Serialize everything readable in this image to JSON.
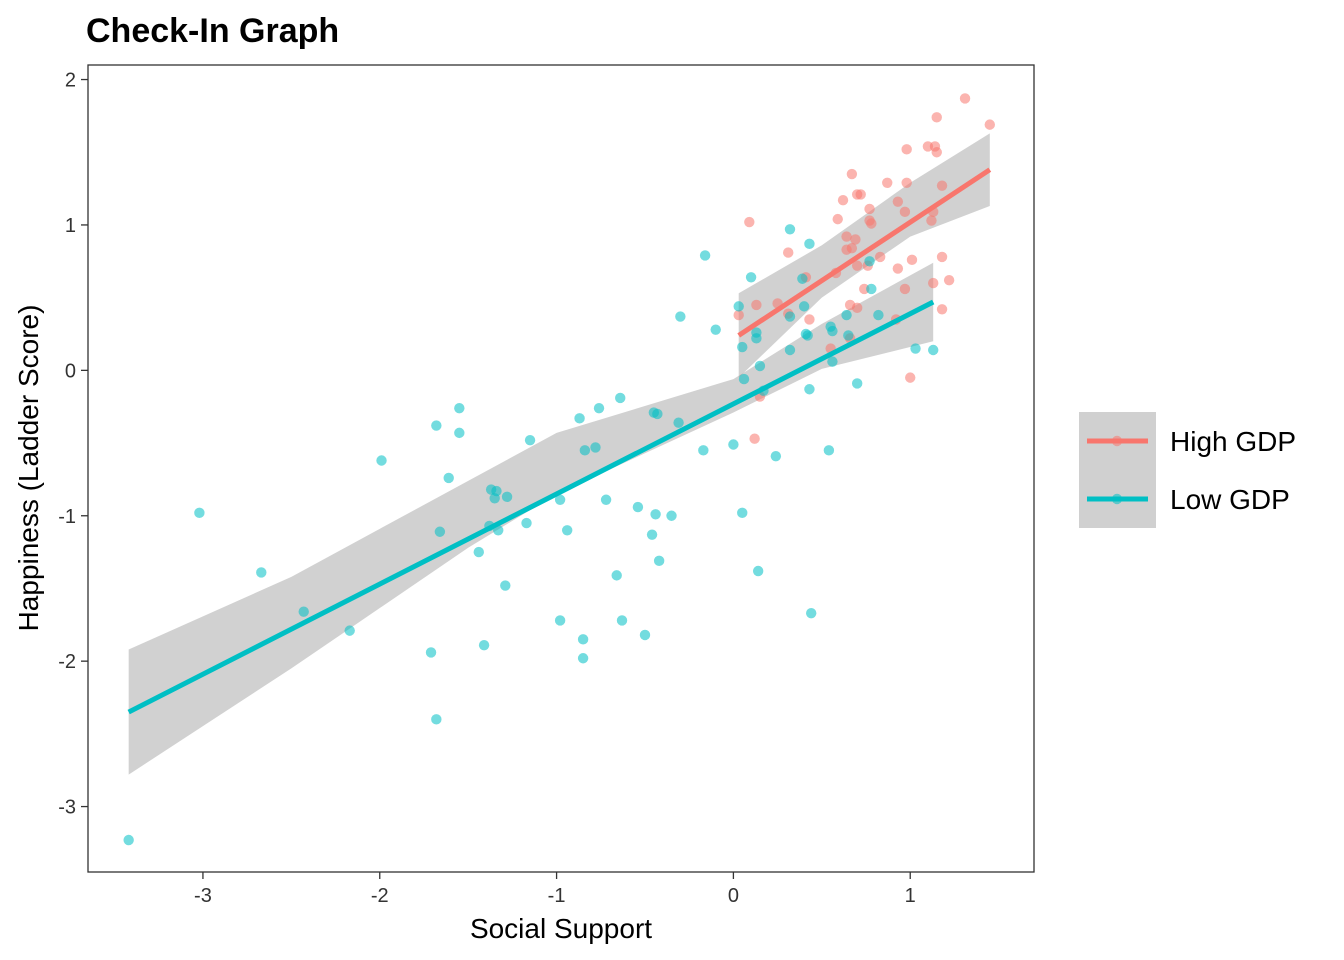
{
  "chart_data": {
    "type": "scatter",
    "title": "Check-In Graph",
    "xlabel": "Social Support",
    "ylabel": "Happiness (Ladder Score)",
    "xlim": [
      -3.65,
      1.7
    ],
    "ylim": [
      -3.45,
      2.1
    ],
    "x_ticks": [
      -3,
      -2,
      -1,
      0,
      1
    ],
    "y_ticks": [
      -3,
      -2,
      -1,
      0,
      1,
      2
    ],
    "x_tick_labels": [
      "-3",
      "-2",
      "-1",
      "0",
      "1"
    ],
    "y_tick_labels": [
      "-3",
      "-2",
      "-1",
      "0",
      "1",
      "2"
    ],
    "grid": false,
    "legend_position": "right",
    "series": [
      {
        "name": "High GDP",
        "color": "#F8766D",
        "points": [
          [
            1.31,
            1.87
          ],
          [
            1.45,
            1.69
          ],
          [
            1.15,
            1.74
          ],
          [
            1.1,
            1.54
          ],
          [
            1.14,
            1.54
          ],
          [
            1.15,
            1.5
          ],
          [
            0.98,
            1.52
          ],
          [
            1.18,
            1.27
          ],
          [
            1.13,
            1.09
          ],
          [
            1.12,
            1.03
          ],
          [
            0.87,
            1.29
          ],
          [
            0.98,
            1.29
          ],
          [
            0.67,
            1.35
          ],
          [
            0.62,
            1.17
          ],
          [
            0.7,
            1.21
          ],
          [
            0.72,
            1.21
          ],
          [
            0.77,
            1.11
          ],
          [
            0.93,
            1.16
          ],
          [
            0.97,
            1.09
          ],
          [
            0.77,
            1.03
          ],
          [
            0.59,
            1.04
          ],
          [
            0.78,
            1.01
          ],
          [
            0.09,
            1.02
          ],
          [
            0.64,
            0.92
          ],
          [
            0.69,
            0.9
          ],
          [
            0.67,
            0.84
          ],
          [
            0.64,
            0.83
          ],
          [
            0.31,
            0.81
          ],
          [
            0.83,
            0.78
          ],
          [
            0.7,
            0.72
          ],
          [
            0.76,
            0.72
          ],
          [
            1.01,
            0.76
          ],
          [
            1.18,
            0.78
          ],
          [
            0.93,
            0.7
          ],
          [
            0.58,
            0.67
          ],
          [
            0.74,
            0.56
          ],
          [
            0.97,
            0.56
          ],
          [
            1.13,
            0.6
          ],
          [
            1.22,
            0.62
          ],
          [
            0.25,
            0.46
          ],
          [
            0.31,
            0.39
          ],
          [
            0.13,
            0.45
          ],
          [
            0.66,
            0.45
          ],
          [
            0.7,
            0.43
          ],
          [
            0.03,
            0.38
          ],
          [
            0.43,
            0.35
          ],
          [
            0.92,
            0.35
          ],
          [
            1.18,
            0.42
          ],
          [
            0.66,
            0.22
          ],
          [
            0.55,
            0.15
          ],
          [
            1.0,
            -0.05
          ],
          [
            0.15,
            -0.18
          ],
          [
            0.12,
            -0.47
          ],
          [
            0.41,
            0.64
          ]
        ],
        "trend": {
          "x": [
            0.03,
            1.45
          ],
          "y": [
            0.24,
            1.38
          ]
        },
        "band": {
          "x": [
            0.03,
            0.5,
            1.0,
            1.45
          ],
          "lo": [
            -0.05,
            0.5,
            0.92,
            1.13
          ],
          "hi": [
            0.53,
            0.86,
            1.29,
            1.63
          ]
        }
      },
      {
        "name": "Low GDP",
        "color": "#00BFC4",
        "points": [
          [
            -3.42,
            -3.23
          ],
          [
            -3.02,
            -0.98
          ],
          [
            -2.67,
            -1.39
          ],
          [
            -2.43,
            -1.66
          ],
          [
            -2.17,
            -1.79
          ],
          [
            -1.99,
            -0.62
          ],
          [
            -1.71,
            -1.94
          ],
          [
            -1.68,
            -2.4
          ],
          [
            -1.68,
            -0.38
          ],
          [
            -1.66,
            -1.11
          ],
          [
            -1.61,
            -0.74
          ],
          [
            -1.55,
            -0.26
          ],
          [
            -1.55,
            -0.43
          ],
          [
            -1.44,
            -1.25
          ],
          [
            -1.41,
            -1.89
          ],
          [
            -1.38,
            -1.07
          ],
          [
            -1.37,
            -0.82
          ],
          [
            -1.35,
            -0.88
          ],
          [
            -1.34,
            -0.83
          ],
          [
            -1.33,
            -1.1
          ],
          [
            -1.29,
            -1.48
          ],
          [
            -1.28,
            -0.87
          ],
          [
            -1.17,
            -1.05
          ],
          [
            -1.15,
            -0.48
          ],
          [
            -0.98,
            -0.89
          ],
          [
            -0.98,
            -1.72
          ],
          [
            -0.94,
            -1.1
          ],
          [
            -0.87,
            -0.33
          ],
          [
            -0.85,
            -1.85
          ],
          [
            -0.85,
            -1.98
          ],
          [
            -0.84,
            -0.55
          ],
          [
            -0.78,
            -0.53
          ],
          [
            -0.76,
            -0.26
          ],
          [
            -0.72,
            -0.89
          ],
          [
            -0.66,
            -1.41
          ],
          [
            -0.64,
            -0.19
          ],
          [
            -0.63,
            -1.72
          ],
          [
            -0.54,
            -0.94
          ],
          [
            -0.5,
            -1.82
          ],
          [
            -0.46,
            -1.13
          ],
          [
            -0.45,
            -0.29
          ],
          [
            -0.44,
            -0.99
          ],
          [
            -0.43,
            -0.3
          ],
          [
            -0.42,
            -1.31
          ],
          [
            -0.35,
            -1.0
          ],
          [
            -0.31,
            -0.36
          ],
          [
            -0.3,
            0.37
          ],
          [
            -0.17,
            -0.55
          ],
          [
            -0.16,
            0.79
          ],
          [
            -0.1,
            0.28
          ],
          [
            0.0,
            -0.51
          ],
          [
            0.03,
            0.44
          ],
          [
            0.05,
            -0.98
          ],
          [
            0.05,
            0.16
          ],
          [
            0.06,
            -0.06
          ],
          [
            0.1,
            0.64
          ],
          [
            0.13,
            0.26
          ],
          [
            0.13,
            0.22
          ],
          [
            0.14,
            -1.38
          ],
          [
            0.15,
            0.03
          ],
          [
            0.17,
            -0.14
          ],
          [
            0.24,
            -0.59
          ],
          [
            0.32,
            0.97
          ],
          [
            0.32,
            0.37
          ],
          [
            0.32,
            0.14
          ],
          [
            0.39,
            0.63
          ],
          [
            0.4,
            0.44
          ],
          [
            0.41,
            0.25
          ],
          [
            0.43,
            0.87
          ],
          [
            0.43,
            -0.13
          ],
          [
            0.44,
            -1.67
          ],
          [
            0.54,
            -0.55
          ],
          [
            0.55,
            0.3
          ],
          [
            0.56,
            0.27
          ],
          [
            0.56,
            0.06
          ],
          [
            0.64,
            0.38
          ],
          [
            0.65,
            0.24
          ],
          [
            0.7,
            -0.09
          ],
          [
            0.77,
            0.75
          ],
          [
            0.78,
            0.56
          ],
          [
            0.82,
            0.38
          ],
          [
            1.03,
            0.15
          ],
          [
            1.13,
            0.14
          ],
          [
            0.42,
            0.24
          ]
        ],
        "trend": {
          "x": [
            -3.42,
            1.13
          ],
          "y": [
            -2.35,
            0.47
          ]
        },
        "band": {
          "x": [
            -3.42,
            -2.5,
            -1.5,
            -1.0,
            0.0,
            0.5,
            1.13
          ],
          "lo": [
            -2.78,
            -2.05,
            -1.22,
            -0.85,
            -0.29,
            0.01,
            0.2
          ],
          "hi": [
            -1.92,
            -1.42,
            -0.76,
            -0.43,
            -0.06,
            0.32,
            0.74
          ]
        }
      }
    ]
  }
}
